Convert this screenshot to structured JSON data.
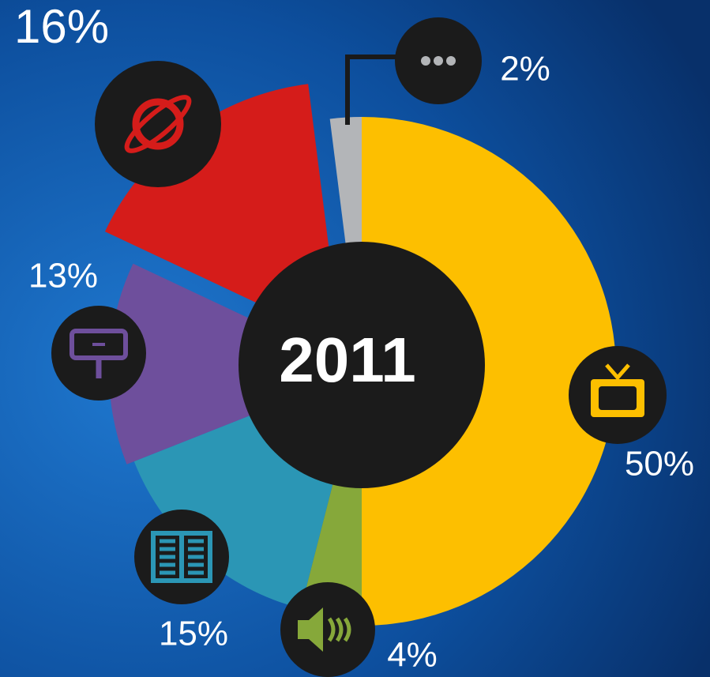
{
  "chart_data": {
    "type": "pie",
    "center_label": "2011",
    "values": [
      50,
      4,
      15,
      13,
      16,
      2
    ],
    "value_labels": [
      "50%",
      "4%",
      "15%",
      "13%",
      "16%",
      "2%"
    ],
    "colors": [
      "#fdbf00",
      "#86a83a",
      "#2b96b5",
      "#6e4f9c",
      "#d51c1a",
      "#b3b5b8"
    ]
  }
}
